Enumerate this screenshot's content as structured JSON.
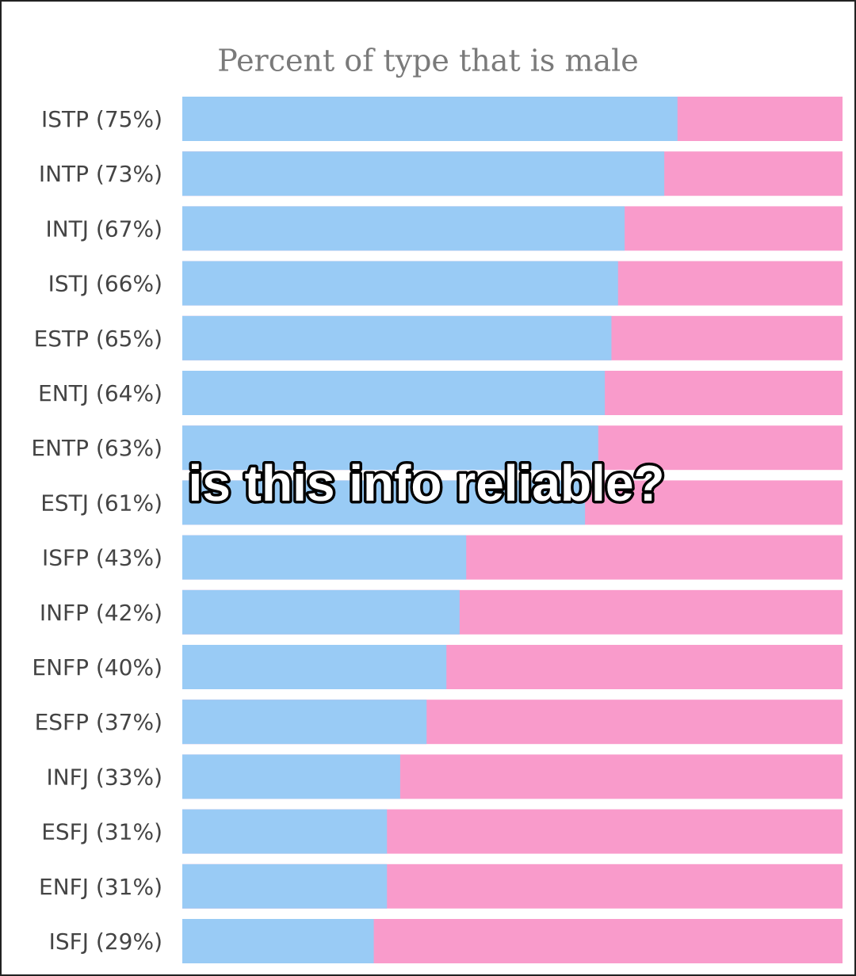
{
  "chart_data": {
    "type": "bar",
    "orientation": "horizontal",
    "title": "Percent of type that is male",
    "annotation": "is this info reliable?",
    "categories": [
      "ISTP (75%)",
      "INTP (73%)",
      "INTJ (67%)",
      "ISTJ (66%)",
      "ESTP (65%)",
      "ENTJ (64%)",
      "ENTP (63%)",
      "ESTJ (61%)",
      "ISFP (43%)",
      "INFP (42%)",
      "ENFP (40%)",
      "ESFP (37%)",
      "INFJ (33%)",
      "ESFJ (31%)",
      "ENFJ (31%)",
      "ISFJ (29%)"
    ],
    "values": [
      75,
      73,
      67,
      66,
      65,
      64,
      63,
      61,
      43,
      42,
      40,
      37,
      33,
      31,
      31,
      29
    ],
    "color": "#99cbf5",
    "remainder_color": "#f99bcb",
    "xlim": [
      0,
      100
    ]
  }
}
